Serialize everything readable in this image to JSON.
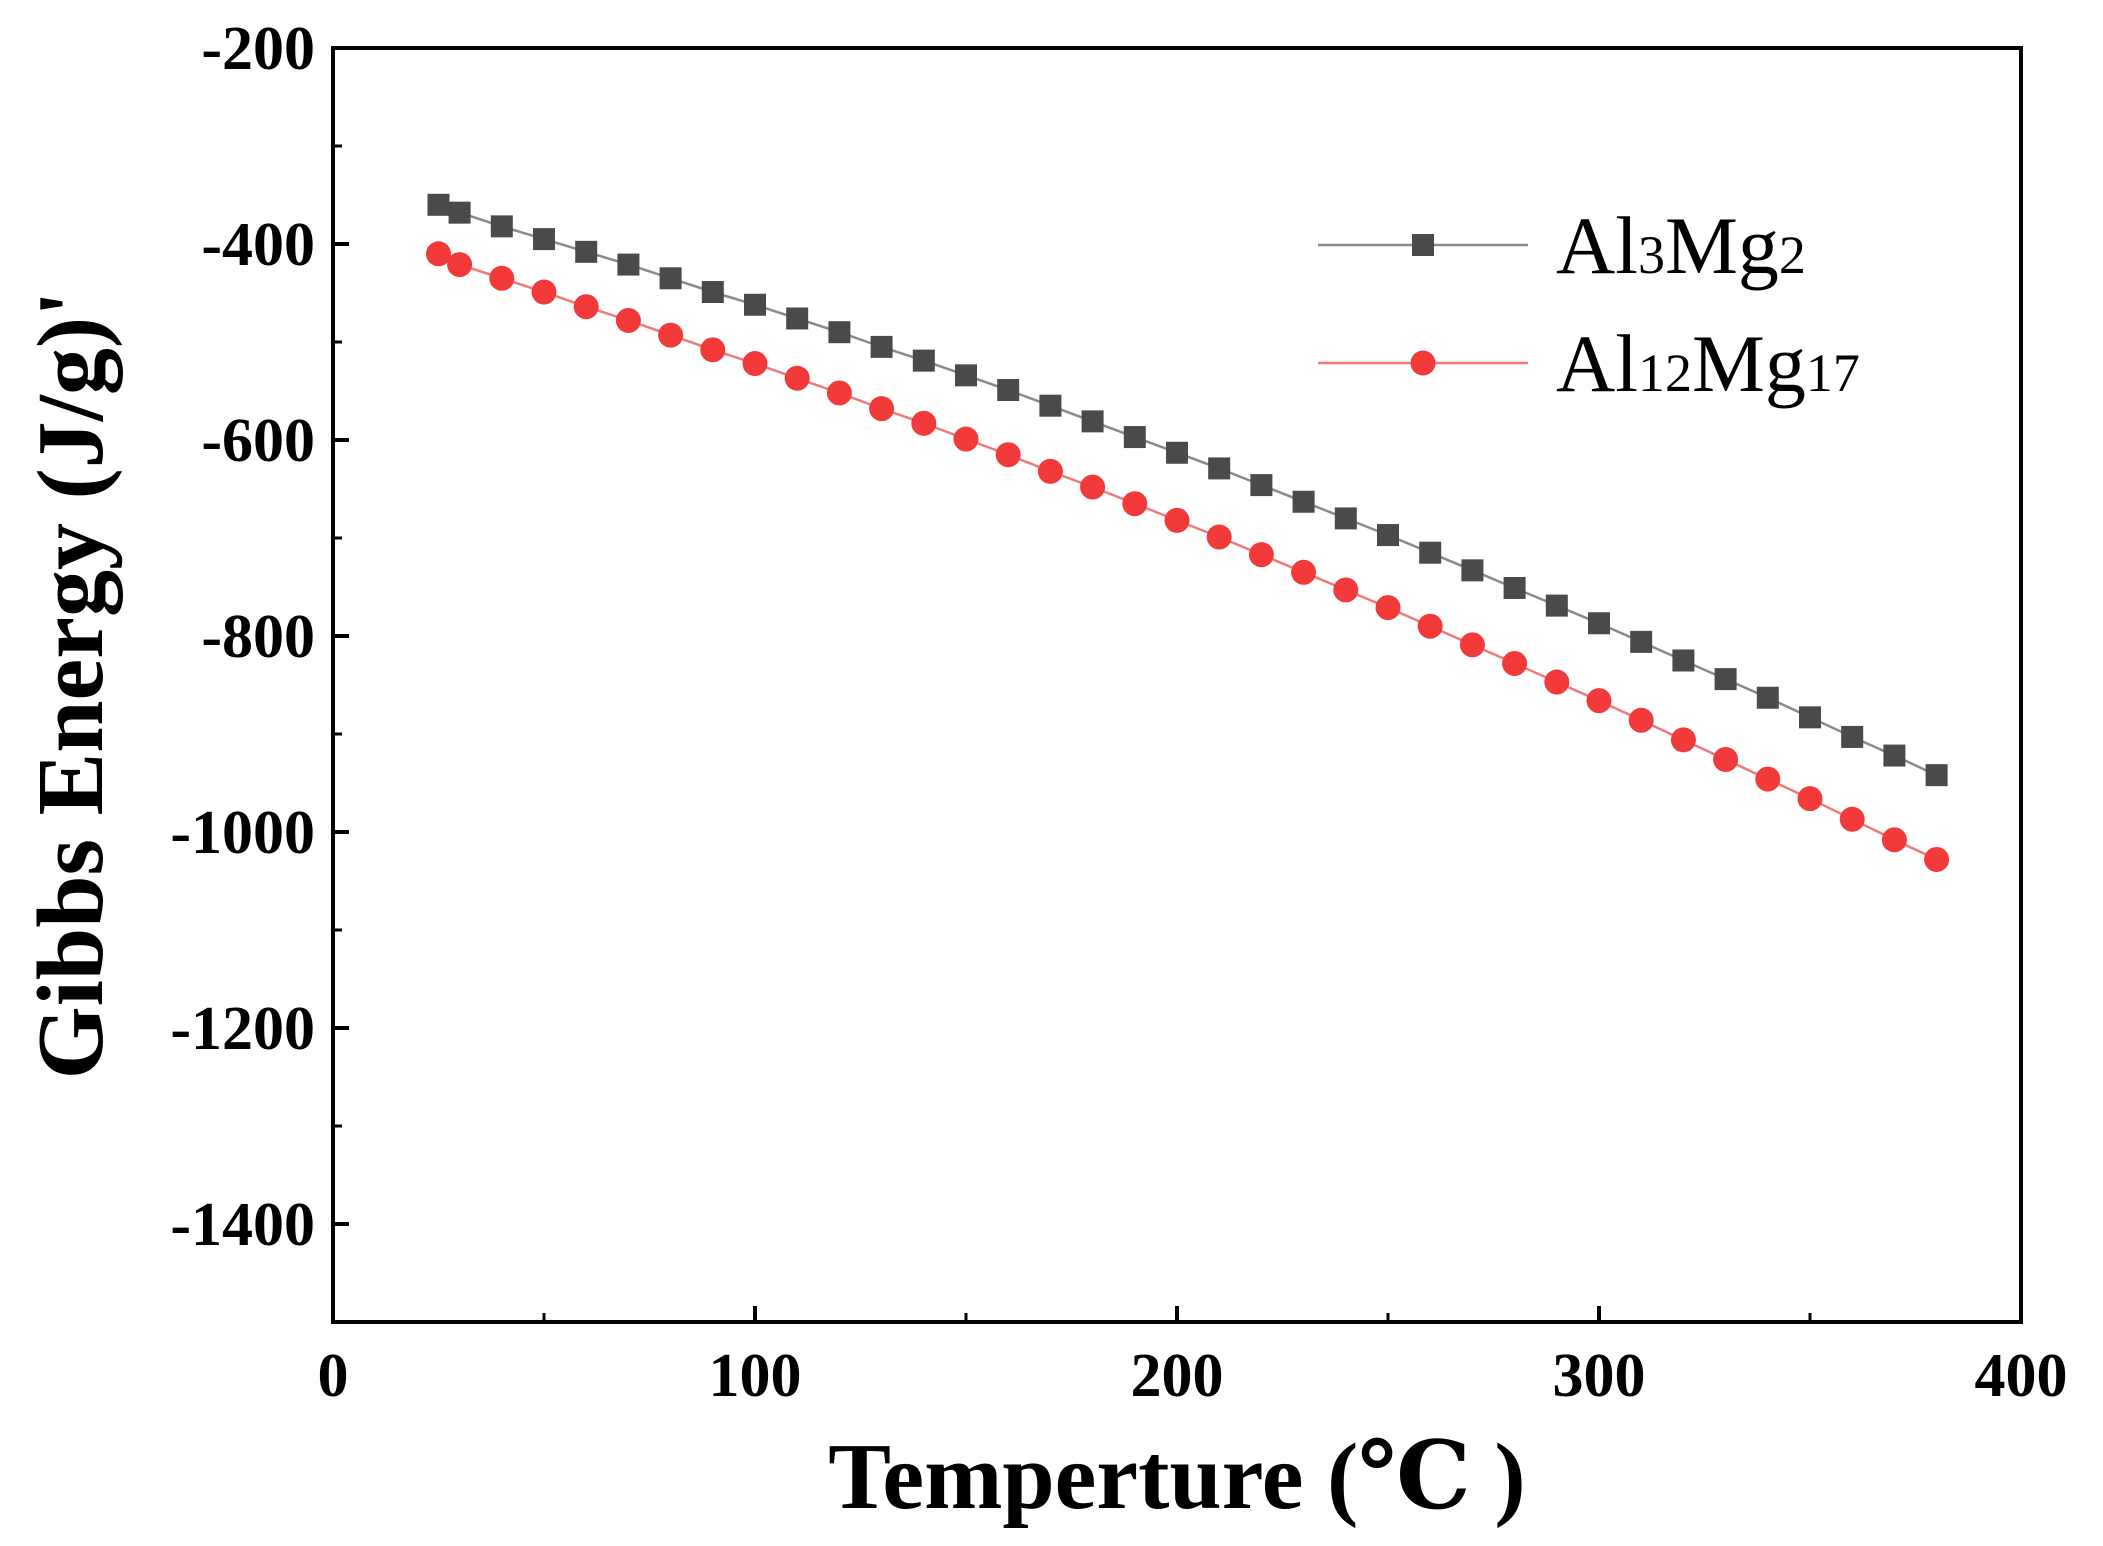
{
  "chart_data": {
    "type": "line",
    "title": "",
    "xlabel": "Temperture (℃ )",
    "ylabel": "Gibbs Energy (J/g)'",
    "xlim": [
      0,
      400
    ],
    "ylim": [
      -1500,
      -200
    ],
    "xticks": [
      0,
      100,
      200,
      300,
      400
    ],
    "yticks": [
      -200,
      -400,
      -600,
      -800,
      -1000,
      -1200,
      -1400
    ],
    "xtick_labels": [
      "0",
      "100",
      "200",
      "300",
      "400"
    ],
    "ytick_labels": [
      "-200",
      "-400",
      "-600",
      "-800",
      "-1000",
      "-1200",
      "-1400"
    ],
    "grid": false,
    "legend_position": "top-right",
    "x": [
      25,
      30,
      40,
      50,
      60,
      70,
      80,
      90,
      100,
      110,
      120,
      130,
      140,
      150,
      160,
      170,
      180,
      190,
      200,
      210,
      220,
      230,
      240,
      250,
      260,
      270,
      280,
      290,
      300,
      310,
      320,
      330,
      340,
      350,
      360,
      370,
      380
    ],
    "series": [
      {
        "name": "Al3Mg2",
        "legend_main": [
          "Al",
          "Mg"
        ],
        "legend_sub": [
          "3",
          "2"
        ],
        "marker": "square",
        "color": "#4a4a4a",
        "line_color": "#8a8a8a",
        "values": [
          -360,
          -368,
          -382,
          -395,
          -408,
          -421,
          -435,
          -449,
          -462,
          -476,
          -490,
          -505,
          -519,
          -534,
          -549,
          -565,
          -581,
          -597,
          -613,
          -629,
          -646,
          -663,
          -680,
          -697,
          -715,
          -733,
          -751,
          -769,
          -787,
          -806,
          -825,
          -844,
          -863,
          -883,
          -903,
          -922,
          -942
        ]
      },
      {
        "name": "Al12Mg17",
        "legend_main": [
          "Al",
          "Mg"
        ],
        "legend_sub": [
          "12",
          "17"
        ],
        "marker": "circle",
        "color": "#f23a3a",
        "line_color": "#f07a7a",
        "values": [
          -410,
          -421,
          -435,
          -449,
          -464,
          -478,
          -493,
          -508,
          -522,
          -537,
          -552,
          -568,
          -583,
          -599,
          -615,
          -632,
          -648,
          -665,
          -682,
          -699,
          -717,
          -735,
          -753,
          -771,
          -790,
          -809,
          -828,
          -847,
          -866,
          -886,
          -906,
          -926,
          -946,
          -966,
          -987,
          -1008,
          -1028
        ]
      }
    ]
  }
}
